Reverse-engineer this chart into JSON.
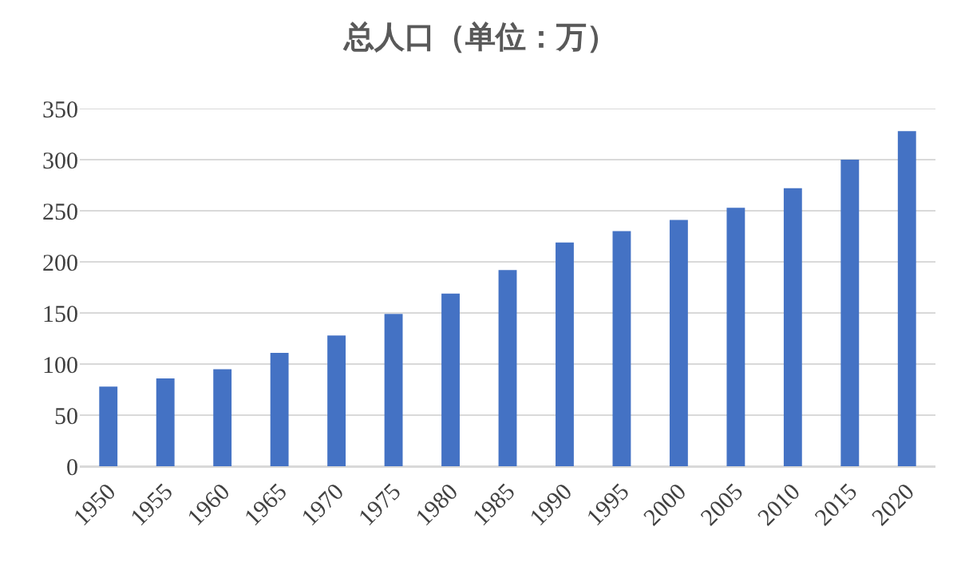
{
  "chart_data": {
    "type": "bar",
    "title": "总人口（单位：万）",
    "categories": [
      "1950",
      "1955",
      "1960",
      "1965",
      "1970",
      "1975",
      "1980",
      "1985",
      "1990",
      "1995",
      "2000",
      "2005",
      "2010",
      "2015",
      "2020"
    ],
    "values": [
      78,
      86,
      95,
      111,
      128,
      149,
      169,
      192,
      219,
      230,
      241,
      253,
      272,
      300,
      328
    ],
    "color": "#4472c4",
    "ylim": [
      0,
      350
    ],
    "yticks": [
      0,
      50,
      100,
      150,
      200,
      250,
      300,
      350
    ],
    "grid": "y"
  }
}
